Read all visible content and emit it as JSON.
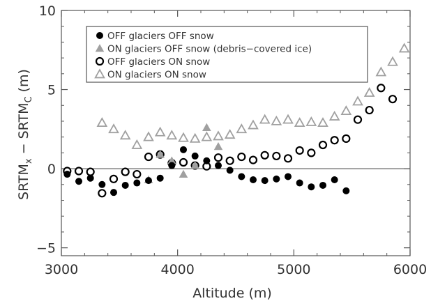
{
  "chart_data": {
    "type": "scatter",
    "xlabel": "Altitude (m)",
    "ylabel": {
      "base": "SRTM",
      "sub1": "x",
      "mid": " − SRTM",
      "sub2": "C",
      "unit": " (m)"
    },
    "xlim": [
      3000,
      6000
    ],
    "ylim": [
      -5.5,
      10
    ],
    "xticks": [
      3000,
      4000,
      5000,
      6000
    ],
    "yticks": [
      -5,
      0,
      5,
      10
    ],
    "zero_line": 0,
    "grid": false,
    "legend_position": "top-left",
    "series": [
      {
        "name": "OFF glaciers OFF snow",
        "marker": "filled-circle",
        "color": "#000000",
        "points": [
          [
            3050,
            -0.35
          ],
          [
            3150,
            -0.8
          ],
          [
            3250,
            -0.6
          ],
          [
            3350,
            -1.0
          ],
          [
            3450,
            -1.5
          ],
          [
            3550,
            -1.05
          ],
          [
            3650,
            -0.9
          ],
          [
            3750,
            -0.75
          ],
          [
            3850,
            -0.6
          ],
          [
            3950,
            0.2
          ],
          [
            4050,
            1.2
          ],
          [
            4150,
            0.8
          ],
          [
            4250,
            0.5
          ],
          [
            4350,
            0.2
          ],
          [
            4450,
            -0.1
          ],
          [
            4550,
            -0.5
          ],
          [
            4650,
            -0.7
          ],
          [
            4750,
            -0.75
          ],
          [
            4850,
            -0.65
          ],
          [
            4950,
            -0.5
          ],
          [
            5050,
            -0.9
          ],
          [
            5150,
            -1.15
          ],
          [
            5250,
            -1.05
          ],
          [
            5350,
            -0.7
          ],
          [
            5450,
            -1.4
          ]
        ]
      },
      {
        "name": "ON glaciers OFF snow (debris−covered ice)",
        "marker": "filled-triangle",
        "color": "#a0a0a0",
        "points": [
          [
            3750,
            -0.7
          ],
          [
            3850,
            0.9
          ],
          [
            3950,
            0.5
          ],
          [
            4050,
            -0.35
          ],
          [
            4150,
            0.2
          ],
          [
            4250,
            2.6
          ],
          [
            4350,
            1.4
          ]
        ]
      },
      {
        "name": "OFF glaciers ON snow",
        "marker": "open-circle",
        "color": "#000000",
        "points": [
          [
            3050,
            -0.15
          ],
          [
            3150,
            -0.15
          ],
          [
            3250,
            -0.2
          ],
          [
            3350,
            -1.55
          ],
          [
            3450,
            -0.65
          ],
          [
            3550,
            -0.2
          ],
          [
            3650,
            -0.35
          ],
          [
            3750,
            0.75
          ],
          [
            3850,
            0.9
          ],
          [
            3950,
            0.35
          ],
          [
            4050,
            0.4
          ],
          [
            4150,
            0.2
          ],
          [
            4250,
            0.15
          ],
          [
            4350,
            0.7
          ],
          [
            4450,
            0.5
          ],
          [
            4550,
            0.75
          ],
          [
            4650,
            0.55
          ],
          [
            4750,
            0.85
          ],
          [
            4850,
            0.8
          ],
          [
            4950,
            0.65
          ],
          [
            5050,
            1.15
          ],
          [
            5150,
            1.0
          ],
          [
            5250,
            1.5
          ],
          [
            5350,
            1.8
          ],
          [
            5450,
            1.9
          ],
          [
            5550,
            3.1
          ],
          [
            5650,
            3.7
          ],
          [
            5750,
            5.1
          ],
          [
            5850,
            4.4
          ]
        ]
      },
      {
        "name": "ON glaciers ON snow",
        "marker": "open-triangle",
        "color": "#a0a0a0",
        "points": [
          [
            3350,
            2.9
          ],
          [
            3450,
            2.5
          ],
          [
            3550,
            2.1
          ],
          [
            3650,
            1.5
          ],
          [
            3750,
            2.0
          ],
          [
            3850,
            2.3
          ],
          [
            3950,
            2.1
          ],
          [
            4050,
            1.95
          ],
          [
            4150,
            1.9
          ],
          [
            4250,
            2.0
          ],
          [
            4350,
            2.05
          ],
          [
            4450,
            2.15
          ],
          [
            4550,
            2.5
          ],
          [
            4650,
            2.75
          ],
          [
            4750,
            3.1
          ],
          [
            4850,
            3.0
          ],
          [
            4950,
            3.1
          ],
          [
            5050,
            2.9
          ],
          [
            5150,
            2.95
          ],
          [
            5250,
            2.9
          ],
          [
            5350,
            3.3
          ],
          [
            5450,
            3.65
          ],
          [
            5550,
            4.25
          ],
          [
            5650,
            4.8
          ],
          [
            5750,
            6.1
          ],
          [
            5850,
            6.75
          ],
          [
            5950,
            7.6
          ]
        ]
      }
    ]
  }
}
